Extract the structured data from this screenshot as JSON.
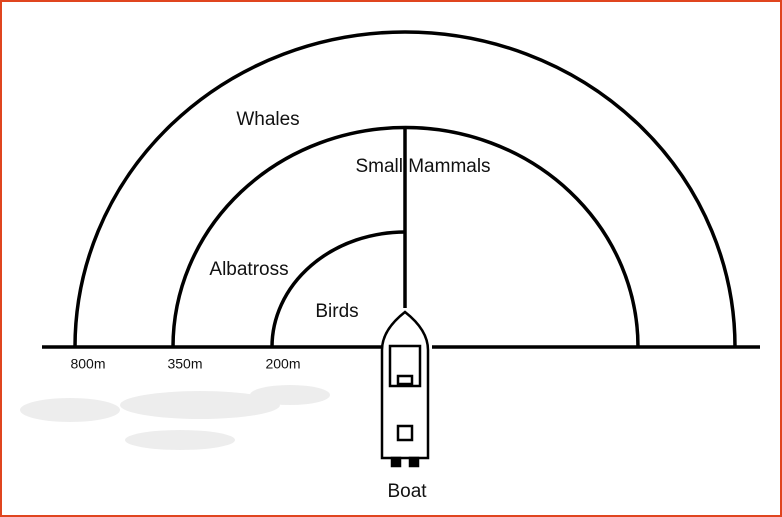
{
  "regions": [
    {
      "label": "Whales",
      "distance": "800m"
    },
    {
      "label": "Albatross",
      "distance": "350m"
    },
    {
      "label": "Birds",
      "distance": "200m"
    }
  ],
  "divider_label": "Small Mammals",
  "vessel_label": "Boat"
}
